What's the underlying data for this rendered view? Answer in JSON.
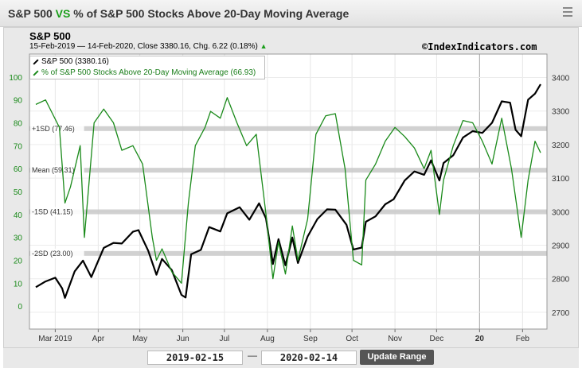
{
  "header": {
    "title_left": "S&P 500",
    "title_vs": "VS",
    "title_right": "% of S&P 500 Stocks Above 20-Day Moving Average"
  },
  "chart_info": {
    "symbol": "S&P 500",
    "details": "15-Feb-2019 — 14-Feb-2020, Close 3380.16, Chg. 6.22 (0.18%)",
    "change_arrow": "▲",
    "copyright": "©IndexIndicators.com"
  },
  "legend": {
    "sp500": "S&P 500 (3380.16)",
    "pct": "% of S&P 500 Stocks Above 20-Day Moving Average (66.93)"
  },
  "colors": {
    "sp500": "#000000",
    "pct": "#1a8a1a",
    "band": "#c9c9c9",
    "plot_bg": "#ffffff"
  },
  "range": {
    "from": "2019-02-15",
    "to": "2020-02-14",
    "button": "Update Range",
    "separator": "—"
  },
  "chart_data": {
    "type": "line",
    "x_range": [
      "2019-02-15",
      "2020-02-14"
    ],
    "x_ticks": [
      {
        "label": "Mar 2019",
        "date": "2019-03-01"
      },
      {
        "label": "Apr",
        "date": "2019-04-01"
      },
      {
        "label": "May",
        "date": "2019-05-01"
      },
      {
        "label": "Jun",
        "date": "2019-06-01"
      },
      {
        "label": "Jul",
        "date": "2019-07-01"
      },
      {
        "label": "Aug",
        "date": "2019-08-01"
      },
      {
        "label": "Sep",
        "date": "2019-09-01"
      },
      {
        "label": "Oct",
        "date": "2019-10-01"
      },
      {
        "label": "Nov",
        "date": "2019-11-01"
      },
      {
        "label": "Dec",
        "date": "2019-12-01"
      },
      {
        "label": "20",
        "date": "2020-01-01"
      },
      {
        "label": "Feb",
        "date": "2020-02-01"
      }
    ],
    "left_axis": {
      "ylim": [
        -10,
        110
      ],
      "ticks": [
        0,
        10,
        20,
        30,
        40,
        50,
        60,
        70,
        80,
        90,
        100
      ]
    },
    "right_axis": {
      "ylim": [
        2650,
        3470
      ],
      "ticks": [
        2700,
        2800,
        2900,
        3000,
        3100,
        3200,
        3300,
        3400
      ]
    },
    "bands": [
      {
        "label": "+1SD (77.46)",
        "value": 77.46
      },
      {
        "label": "Mean (59.31)",
        "value": 59.31
      },
      {
        "label": "-1SD (41.15)",
        "value": 41.15
      },
      {
        "label": "-2SD (23.00)",
        "value": 23.0
      }
    ],
    "series": [
      {
        "name": "S&P 500",
        "axis": "right",
        "points": [
          [
            "2019-02-15",
            2775
          ],
          [
            "2019-02-22",
            2792
          ],
          [
            "2019-03-01",
            2803
          ],
          [
            "2019-03-06",
            2771
          ],
          [
            "2019-03-08",
            2743
          ],
          [
            "2019-03-15",
            2822
          ],
          [
            "2019-03-21",
            2854
          ],
          [
            "2019-03-27",
            2805
          ],
          [
            "2019-04-05",
            2892
          ],
          [
            "2019-04-12",
            2907
          ],
          [
            "2019-04-18",
            2905
          ],
          [
            "2019-04-26",
            2940
          ],
          [
            "2019-04-30",
            2945
          ],
          [
            "2019-05-07",
            2884
          ],
          [
            "2019-05-13",
            2812
          ],
          [
            "2019-05-17",
            2859
          ],
          [
            "2019-05-24",
            2826
          ],
          [
            "2019-05-31",
            2752
          ],
          [
            "2019-06-03",
            2744
          ],
          [
            "2019-06-07",
            2873
          ],
          [
            "2019-06-14",
            2886
          ],
          [
            "2019-06-20",
            2954
          ],
          [
            "2019-06-28",
            2941
          ],
          [
            "2019-07-03",
            2995
          ],
          [
            "2019-07-12",
            3013
          ],
          [
            "2019-07-19",
            2976
          ],
          [
            "2019-07-26",
            3025
          ],
          [
            "2019-07-31",
            2980
          ],
          [
            "2019-08-05",
            2844
          ],
          [
            "2019-08-09",
            2918
          ],
          [
            "2019-08-14",
            2840
          ],
          [
            "2019-08-19",
            2923
          ],
          [
            "2019-08-23",
            2847
          ],
          [
            "2019-08-30",
            2926
          ],
          [
            "2019-09-06",
            2978
          ],
          [
            "2019-09-13",
            3007
          ],
          [
            "2019-09-19",
            3006
          ],
          [
            "2019-09-27",
            2961
          ],
          [
            "2019-10-02",
            2887
          ],
          [
            "2019-10-08",
            2893
          ],
          [
            "2019-10-11",
            2970
          ],
          [
            "2019-10-18",
            2986
          ],
          [
            "2019-10-25",
            3022
          ],
          [
            "2019-10-31",
            3037
          ],
          [
            "2019-11-08",
            3093
          ],
          [
            "2019-11-15",
            3120
          ],
          [
            "2019-11-22",
            3110
          ],
          [
            "2019-11-27",
            3153
          ],
          [
            "2019-12-03",
            3093
          ],
          [
            "2019-12-06",
            3145
          ],
          [
            "2019-12-13",
            3168
          ],
          [
            "2019-12-20",
            3221
          ],
          [
            "2019-12-27",
            3240
          ],
          [
            "2020-01-03",
            3235
          ],
          [
            "2020-01-10",
            3265
          ],
          [
            "2020-01-17",
            3329
          ],
          [
            "2020-01-23",
            3325
          ],
          [
            "2020-01-27",
            3244
          ],
          [
            "2020-01-31",
            3225
          ],
          [
            "2020-02-05",
            3334
          ],
          [
            "2020-02-10",
            3352
          ],
          [
            "2020-02-14",
            3380
          ]
        ]
      },
      {
        "name": "% of S&P 500 Stocks Above 20-Day Moving Average",
        "axis": "left",
        "points": [
          [
            "2019-02-15",
            88
          ],
          [
            "2019-02-22",
            90
          ],
          [
            "2019-02-27",
            84
          ],
          [
            "2019-03-04",
            78
          ],
          [
            "2019-03-08",
            45
          ],
          [
            "2019-03-12",
            52
          ],
          [
            "2019-03-19",
            70
          ],
          [
            "2019-03-22",
            30
          ],
          [
            "2019-03-29",
            80
          ],
          [
            "2019-04-05",
            86
          ],
          [
            "2019-04-12",
            80
          ],
          [
            "2019-04-18",
            68
          ],
          [
            "2019-04-26",
            70
          ],
          [
            "2019-05-03",
            62
          ],
          [
            "2019-05-10",
            30
          ],
          [
            "2019-05-13",
            20
          ],
          [
            "2019-05-17",
            25
          ],
          [
            "2019-05-24",
            15
          ],
          [
            "2019-05-31",
            10
          ],
          [
            "2019-06-05",
            45
          ],
          [
            "2019-06-10",
            70
          ],
          [
            "2019-06-17",
            78
          ],
          [
            "2019-06-21",
            85
          ],
          [
            "2019-06-28",
            82
          ],
          [
            "2019-07-03",
            91
          ],
          [
            "2019-07-10",
            80
          ],
          [
            "2019-07-17",
            70
          ],
          [
            "2019-07-24",
            75
          ],
          [
            "2019-07-31",
            40
          ],
          [
            "2019-08-05",
            12
          ],
          [
            "2019-08-09",
            28
          ],
          [
            "2019-08-14",
            14
          ],
          [
            "2019-08-19",
            35
          ],
          [
            "2019-08-23",
            20
          ],
          [
            "2019-08-30",
            38
          ],
          [
            "2019-09-05",
            75
          ],
          [
            "2019-09-12",
            83
          ],
          [
            "2019-09-19",
            84
          ],
          [
            "2019-09-26",
            60
          ],
          [
            "2019-10-02",
            20
          ],
          [
            "2019-10-08",
            18
          ],
          [
            "2019-10-11",
            55
          ],
          [
            "2019-10-18",
            62
          ],
          [
            "2019-10-25",
            72
          ],
          [
            "2019-11-01",
            78
          ],
          [
            "2019-11-08",
            74
          ],
          [
            "2019-11-15",
            69
          ],
          [
            "2019-11-22",
            60
          ],
          [
            "2019-11-27",
            68
          ],
          [
            "2019-12-03",
            40
          ],
          [
            "2019-12-06",
            55
          ],
          [
            "2019-12-13",
            70
          ],
          [
            "2019-12-20",
            81
          ],
          [
            "2019-12-27",
            80
          ],
          [
            "2020-01-03",
            72
          ],
          [
            "2020-01-10",
            62
          ],
          [
            "2020-01-17",
            82
          ],
          [
            "2020-01-24",
            60
          ],
          [
            "2020-01-31",
            30
          ],
          [
            "2020-02-05",
            55
          ],
          [
            "2020-02-10",
            72
          ],
          [
            "2020-02-14",
            66.93
          ]
        ]
      }
    ]
  }
}
